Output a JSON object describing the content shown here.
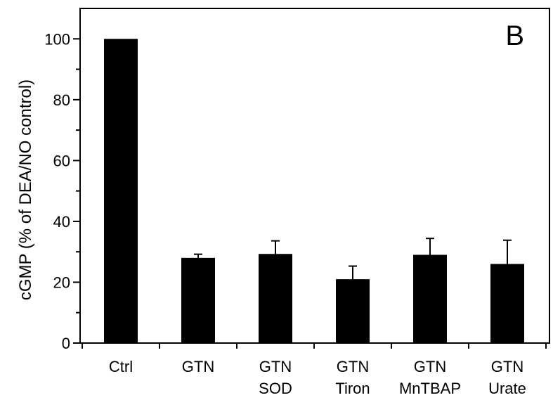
{
  "chart_data": {
    "type": "bar",
    "panel_label": "B",
    "ylabel": "cGMP (% of DEA/NO control)",
    "xlabel": "",
    "ylim": [
      0,
      110
    ],
    "yticks": [
      0,
      20,
      40,
      60,
      80,
      100
    ],
    "yticks_labels": [
      "0",
      "20",
      "40",
      "60",
      "80",
      "100"
    ],
    "categories": [
      {
        "line1": "Ctrl",
        "line2": ""
      },
      {
        "line1": "GTN",
        "line2": ""
      },
      {
        "line1": "GTN",
        "line2": "SOD"
      },
      {
        "line1": "GTN",
        "line2": "Tiron"
      },
      {
        "line1": "GTN",
        "line2": "MnTBAP"
      },
      {
        "line1": "GTN",
        "line2": "Urate"
      }
    ],
    "values": [
      100,
      28,
      29.3,
      21,
      29,
      26
    ],
    "error_upper": [
      0,
      1.2,
      4.3,
      4.3,
      5.4,
      7.8
    ],
    "bar_color": "#000000",
    "grid": false,
    "frame": "box"
  }
}
